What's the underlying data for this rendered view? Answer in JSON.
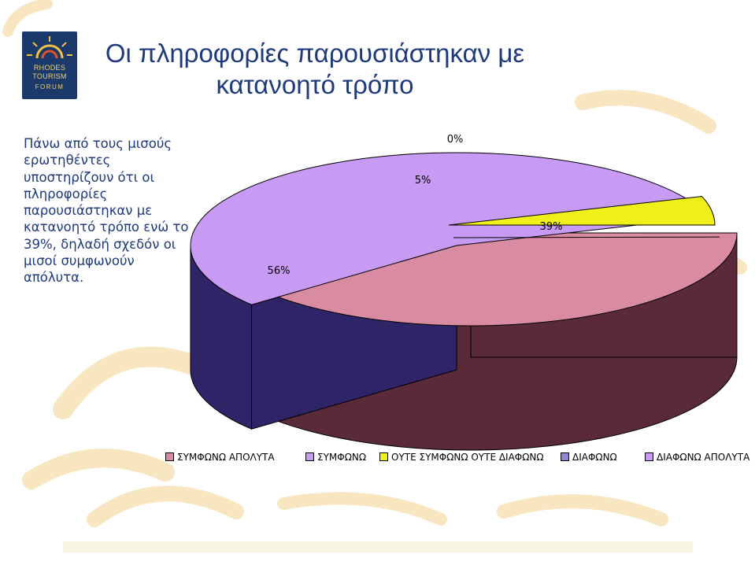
{
  "header": {
    "title_line1": "Οι πληροφορίες παρουσιάστηκαν με",
    "title_line2": "κατανοητό τρόπο"
  },
  "logo": {
    "line1": "RHODES",
    "line2": "TOURISM",
    "line3": "FORUM"
  },
  "description": "Πάνω από τους μισούς ερωτηθέντες υποστηρίζουν ότι οι πληροφορίες παρουσιάστηκαν με κατανοητό τρόπο ενώ το 39%, δηλαδή σχεδόν οι μισοί συμφωνούν απόλυτα.",
  "colors": {
    "accent_text": "#1f3a7a",
    "background_motif": "#f7e3b5"
  },
  "chart_data": {
    "type": "pie",
    "style": "3d-exploded",
    "legend_position": "bottom",
    "slices": [
      {
        "name": "ΣΥΜΦΩΝΩ ΑΠΟΛΥΤΑ",
        "value": 39,
        "label": "39%",
        "color": "#d98ba1",
        "side_color": "#5a2a3a"
      },
      {
        "name": "ΣΥΜΦΩΝΩ",
        "value": 56,
        "label": "56%",
        "color": "#c79bf3",
        "side_color": "#2f2468"
      },
      {
        "name": "ΟΥΤΕ ΣΥΜΦΩΝΩ ΟΥΤΕ ΔΙΑΦΩΝΩ",
        "value": 5,
        "label": "5%",
        "color": "#efef1a",
        "side_color": "#5a5a10"
      },
      {
        "name": "ΔΙΑΦΩΝΩ",
        "value": 0,
        "label": "0%",
        "color": "#8e86d8",
        "side_color": "#2f2468"
      },
      {
        "name": "ΔΙΑΦΩΝΩ ΑΠΟΛΥΤΑ",
        "value": 0,
        "label": "",
        "color": "#c79bf3",
        "side_color": "#2f2468"
      }
    ]
  }
}
